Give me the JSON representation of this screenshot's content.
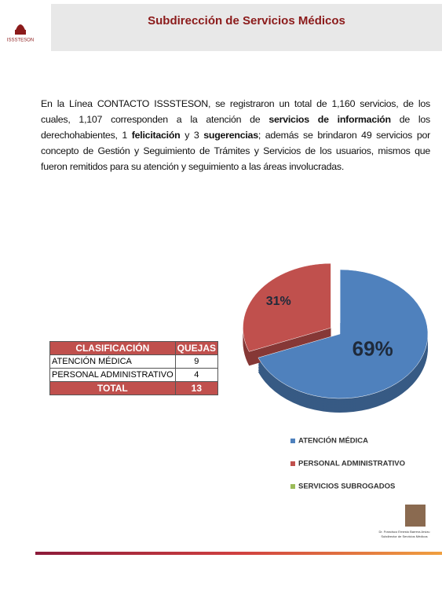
{
  "header": {
    "title": "Subdirección de Servicios Médicos",
    "logo_text": "ISSSTESON"
  },
  "paragraph": [
    {
      "text": "En la Línea CONTACTO ISSSTESON, se registraron un total de 1,160 servicios, de los cuales, 1,107 corresponden a la atención de ",
      "bold": false
    },
    {
      "text": "servicios de información",
      "bold": true
    },
    {
      "text": " de los derechohabientes, 1 ",
      "bold": false
    },
    {
      "text": "felicitación",
      "bold": true
    },
    {
      "text": " y 3 ",
      "bold": false
    },
    {
      "text": "sugerencias",
      "bold": true
    },
    {
      "text": "; además se brindaron 49 servicios por concepto de Gestión y Seguimiento de Trámites y Servicios de los usuarios, mismos que fueron remitidos para su atención y seguimiento a las áreas involucradas.",
      "bold": false
    }
  ],
  "table": {
    "header": [
      "CLASIFICACIÓN",
      "QUEJAS"
    ],
    "rows": [
      [
        "ATENCIÓN MÉDICA",
        "9"
      ],
      [
        "PERSONAL ADMINISTRATIVO",
        "4"
      ]
    ],
    "total": [
      "TOTAL",
      "13"
    ]
  },
  "chart_data": {
    "type": "pie",
    "categories": [
      "ATENCIÓN MÉDICA",
      "PERSONAL ADMINISTRATIVO",
      "SERVICIOS SUBROGADOS"
    ],
    "values": [
      69,
      31,
      0
    ],
    "value_labels": [
      "69%",
      "31%",
      null
    ],
    "colors": [
      "#4f81bd",
      "#c0504d",
      "#9bbb59"
    ],
    "legend": "bottom"
  },
  "signature": [
    "Dr. Francisco Ernesto Barrera Arvizu",
    "Subdirector de Servicios Médicos"
  ]
}
